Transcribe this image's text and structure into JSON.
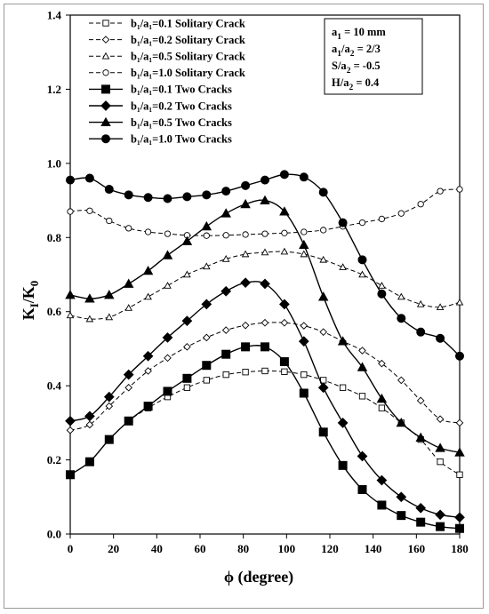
{
  "chart_data": {
    "type": "line",
    "xlabel": "ϕ (degree)",
    "ylabel_main": "K",
    "ylabel_sub1": "I",
    "ylabel_sep": "/K",
    "ylabel_sub2": "0",
    "xlim": [
      0,
      180
    ],
    "ylim": [
      0.0,
      1.4
    ],
    "x_ticks": [
      0,
      20,
      40,
      60,
      80,
      100,
      120,
      140,
      160,
      180
    ],
    "y_ticks": [
      0.0,
      0.2,
      0.4,
      0.6,
      0.8,
      1.0,
      1.2,
      1.4
    ],
    "y_tick_labels": [
      "0.0",
      "0.2",
      "0.4",
      "0.6",
      "0.8",
      "1.0",
      "1.2",
      "1.4"
    ],
    "grid": false,
    "legend_position": "top-left",
    "annotation_lines": [
      {
        "main": "a",
        "sub": "1",
        "rest": " = 10 mm"
      },
      {
        "main": "a",
        "sub": "1",
        "rest": "/a",
        "sub2": "2",
        "rest2": " = 2/3"
      },
      {
        "main": "S/a",
        "sub": "2",
        "rest": " = -0.5"
      },
      {
        "main": "H/a",
        "sub": "2",
        "rest": " = 0.4"
      }
    ],
    "x": [
      0,
      9,
      18,
      27,
      36,
      45,
      54,
      63,
      72,
      81,
      90,
      99,
      108,
      117,
      126,
      135,
      144,
      153,
      162,
      171,
      180
    ],
    "series": [
      {
        "name": "b₁/a₁=0.1  Solitary Crack",
        "marker": "square-open",
        "line": "dashed",
        "values": [
          0.16,
          0.195,
          0.255,
          0.305,
          0.34,
          0.37,
          0.395,
          0.415,
          0.43,
          0.437,
          0.44,
          0.438,
          0.43,
          0.415,
          0.395,
          0.372,
          0.34,
          0.3,
          0.255,
          0.195,
          0.16
        ]
      },
      {
        "name": "b₁/a₁=0.2  Solitary Crack",
        "marker": "diamond-open",
        "line": "dashed",
        "values": [
          0.28,
          0.295,
          0.345,
          0.395,
          0.44,
          0.475,
          0.505,
          0.53,
          0.55,
          0.563,
          0.57,
          0.57,
          0.562,
          0.545,
          0.52,
          0.495,
          0.46,
          0.415,
          0.36,
          0.31,
          0.3
        ]
      },
      {
        "name": "b₁/a₁=0.5  Solitary Crack",
        "marker": "triangle-open",
        "line": "dashed",
        "values": [
          0.59,
          0.58,
          0.585,
          0.61,
          0.64,
          0.67,
          0.7,
          0.722,
          0.742,
          0.755,
          0.76,
          0.762,
          0.755,
          0.74,
          0.72,
          0.7,
          0.67,
          0.64,
          0.62,
          0.612,
          0.625
        ]
      },
      {
        "name": "b₁/a₁=1.0  Solitary Crack",
        "marker": "circle-open",
        "line": "dashed",
        "values": [
          0.87,
          0.872,
          0.845,
          0.825,
          0.815,
          0.81,
          0.806,
          0.805,
          0.806,
          0.808,
          0.81,
          0.812,
          0.815,
          0.82,
          0.83,
          0.84,
          0.85,
          0.865,
          0.89,
          0.925,
          0.93
        ]
      },
      {
        "name": "b₁/a₁=0.1  Two Cracks",
        "marker": "square-filled",
        "line": "solid",
        "values": [
          0.16,
          0.195,
          0.255,
          0.305,
          0.345,
          0.385,
          0.42,
          0.455,
          0.485,
          0.505,
          0.505,
          0.465,
          0.38,
          0.275,
          0.185,
          0.12,
          0.078,
          0.05,
          0.032,
          0.02,
          0.015
        ]
      },
      {
        "name": "b₁/a₁=0.2  Two Cracks",
        "marker": "diamond-filled",
        "line": "solid",
        "values": [
          0.305,
          0.318,
          0.37,
          0.43,
          0.48,
          0.53,
          0.575,
          0.62,
          0.655,
          0.678,
          0.675,
          0.62,
          0.52,
          0.395,
          0.3,
          0.21,
          0.145,
          0.1,
          0.07,
          0.052,
          0.045
        ]
      },
      {
        "name": "b₁/a₁=0.5  Two Cracks",
        "marker": "triangle-filled",
        "line": "solid",
        "values": [
          0.645,
          0.635,
          0.645,
          0.675,
          0.71,
          0.752,
          0.79,
          0.83,
          0.865,
          0.89,
          0.9,
          0.87,
          0.78,
          0.64,
          0.52,
          0.45,
          0.365,
          0.3,
          0.26,
          0.232,
          0.22
        ]
      },
      {
        "name": "b₁/a₁=1.0  Two Cracks",
        "marker": "circle-filled",
        "line": "solid",
        "values": [
          0.955,
          0.96,
          0.93,
          0.915,
          0.908,
          0.905,
          0.91,
          0.915,
          0.925,
          0.94,
          0.955,
          0.97,
          0.963,
          0.922,
          0.84,
          0.74,
          0.648,
          0.582,
          0.545,
          0.528,
          0.48
        ]
      }
    ]
  }
}
